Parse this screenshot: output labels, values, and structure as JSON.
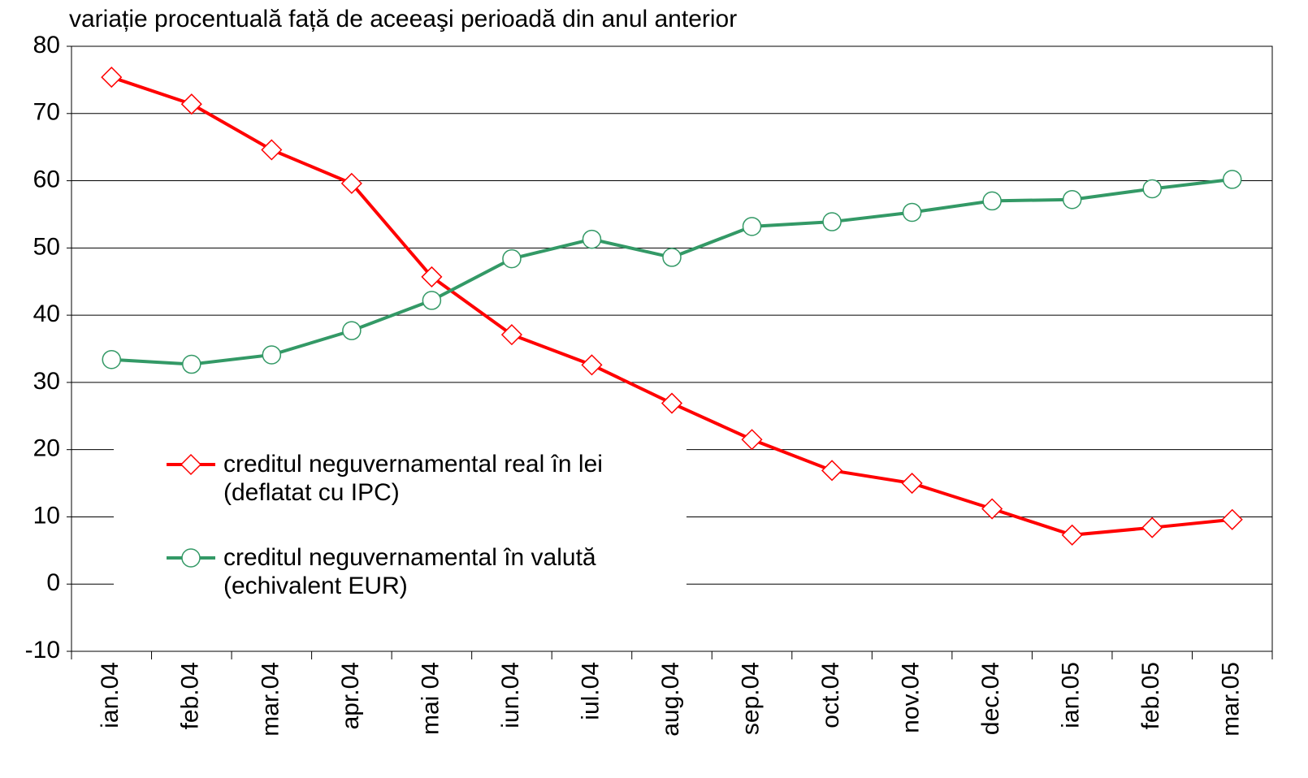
{
  "chart_data": {
    "type": "line",
    "title": "variație procentuală față de aceeaşi perioadă din anul anterior",
    "categories": [
      "ian.04",
      "feb.04",
      "mar.04",
      "apr.04",
      "mai 04",
      "iun.04",
      "iul.04",
      "aug.04",
      "sep.04",
      "oct.04",
      "nov.04",
      "dec.04",
      "ian.05",
      "feb.05",
      "mar.05"
    ],
    "series": [
      {
        "name": "creditul neguvernamental real în lei\n(deflatat cu IPC)",
        "color": "#ff0000",
        "marker": "diamond",
        "values": [
          75.4,
          71.4,
          64.6,
          59.6,
          45.7,
          37.1,
          32.6,
          26.9,
          21.5,
          16.9,
          15.0,
          11.2,
          7.3,
          8.4,
          9.6
        ]
      },
      {
        "name": "creditul neguvernamental în valută\n(echivalent EUR)",
        "color": "#339966",
        "marker": "circle",
        "values": [
          33.4,
          32.7,
          34.1,
          37.7,
          42.2,
          48.4,
          51.3,
          48.6,
          53.2,
          53.9,
          55.3,
          57.0,
          57.2,
          58.8,
          60.2
        ]
      }
    ],
    "ylim": [
      -10,
      80
    ],
    "yticks": [
      -10,
      0,
      10,
      20,
      30,
      40,
      50,
      60,
      70,
      80
    ],
    "grid": true
  }
}
